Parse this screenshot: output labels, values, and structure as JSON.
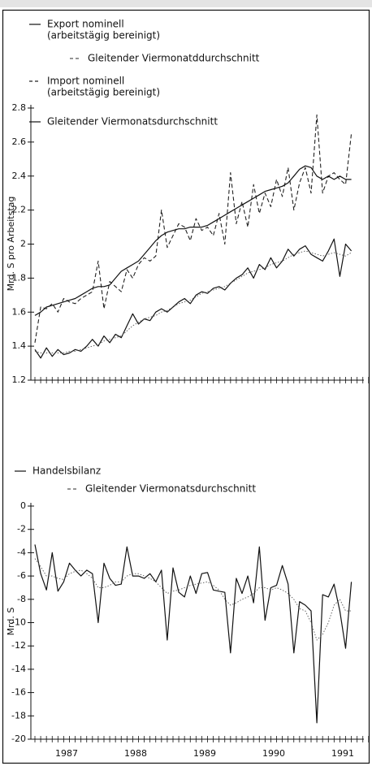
{
  "chart_data": [
    {
      "type": "line",
      "y_label": "Mrd. S pro Arbeitstag",
      "ylim": [
        1.2,
        2.8
      ],
      "yticks": [
        1.2,
        1.4,
        1.6,
        1.8,
        2,
        2.2,
        2.4,
        2.6,
        2.8
      ],
      "series": [
        {
          "name": "Export nominell",
          "note": "(arbeitstägig bereinigt)",
          "color": "#111111",
          "style": "solid",
          "values": [
            1.38,
            1.33,
            1.39,
            1.34,
            1.38,
            1.35,
            1.36,
            1.38,
            1.37,
            1.4,
            1.44,
            1.4,
            1.46,
            1.42,
            1.47,
            1.45,
            1.52,
            1.59,
            1.53,
            1.56,
            1.55,
            1.6,
            1.62,
            1.6,
            1.63,
            1.66,
            1.68,
            1.65,
            1.7,
            1.72,
            1.71,
            1.74,
            1.75,
            1.73,
            1.77,
            1.8,
            1.82,
            1.86,
            1.8,
            1.88,
            1.85,
            1.92,
            1.86,
            1.9,
            1.97,
            1.93,
            1.97,
            1.99,
            1.94,
            1.92,
            1.9,
            1.96,
            2.03,
            1.81,
            2.0,
            1.96
          ]
        },
        {
          "name": "Gleitender Viermonatddurchschnitt",
          "color": "#555555",
          "style": "dotted",
          "values": [
            1.37,
            1.36,
            1.36,
            1.36,
            1.36,
            1.36,
            1.37,
            1.37,
            1.38,
            1.39,
            1.4,
            1.41,
            1.43,
            1.44,
            1.45,
            1.46,
            1.49,
            1.52,
            1.54,
            1.56,
            1.57,
            1.58,
            1.6,
            1.61,
            1.63,
            1.65,
            1.66,
            1.67,
            1.69,
            1.71,
            1.72,
            1.73,
            1.74,
            1.75,
            1.77,
            1.79,
            1.81,
            1.83,
            1.84,
            1.85,
            1.86,
            1.88,
            1.89,
            1.9,
            1.92,
            1.94,
            1.95,
            1.96,
            1.95,
            1.94,
            1.93,
            1.94,
            1.95,
            1.94,
            1.93,
            1.95
          ]
        },
        {
          "name": "Import nominell",
          "note": "(arbeitstägig bereinigt)",
          "color": "#222222",
          "style": "dashed",
          "values": [
            1.42,
            1.63,
            1.62,
            1.65,
            1.6,
            1.68,
            1.66,
            1.65,
            1.68,
            1.7,
            1.72,
            1.9,
            1.62,
            1.78,
            1.75,
            1.72,
            1.85,
            1.8,
            1.88,
            1.92,
            1.9,
            1.93,
            2.2,
            1.98,
            2.05,
            2.12,
            2.1,
            2.02,
            2.15,
            2.08,
            2.1,
            2.05,
            2.18,
            2.0,
            2.42,
            2.12,
            2.25,
            2.1,
            2.35,
            2.18,
            2.3,
            2.22,
            2.38,
            2.28,
            2.45,
            2.2,
            2.36,
            2.45,
            2.3,
            2.76,
            2.3,
            2.4,
            2.42,
            2.38,
            2.35,
            2.65
          ]
        },
        {
          "name": "Gleitender Viermonatsdurchschnitt",
          "color": "#111111",
          "style": "solid",
          "values": [
            1.58,
            1.6,
            1.63,
            1.64,
            1.65,
            1.66,
            1.67,
            1.68,
            1.7,
            1.72,
            1.74,
            1.75,
            1.75,
            1.76,
            1.8,
            1.84,
            1.86,
            1.88,
            1.9,
            1.94,
            1.98,
            2.02,
            2.05,
            2.07,
            2.08,
            2.09,
            2.09,
            2.1,
            2.1,
            2.1,
            2.11,
            2.13,
            2.15,
            2.17,
            2.19,
            2.21,
            2.23,
            2.25,
            2.27,
            2.29,
            2.31,
            2.32,
            2.33,
            2.34,
            2.36,
            2.4,
            2.44,
            2.46,
            2.45,
            2.4,
            2.38,
            2.4,
            2.38,
            2.4,
            2.38,
            2.38
          ]
        }
      ]
    },
    {
      "type": "line",
      "y_label": "Mrd. S",
      "ylim": [
        -20,
        0
      ],
      "yticks": [
        0,
        -2,
        -4,
        -6,
        -8,
        -10,
        -12,
        -14,
        -16,
        -18,
        -20
      ],
      "year_labels": [
        "1987",
        "1988",
        "1989",
        "1990",
        "1991"
      ],
      "series": [
        {
          "name": "Handelsbilanz",
          "color": "#111111",
          "style": "solid",
          "values": [
            -3.3,
            -5.8,
            -7.2,
            -4.0,
            -7.3,
            -6.5,
            -4.9,
            -5.5,
            -6.0,
            -5.5,
            -5.8,
            -10.0,
            -4.9,
            -6.2,
            -6.8,
            -6.7,
            -3.5,
            -6.0,
            -6.0,
            -6.2,
            -5.8,
            -6.5,
            -5.5,
            -11.5,
            -5.3,
            -7.4,
            -7.8,
            -6.0,
            -7.5,
            -5.8,
            -5.7,
            -7.2,
            -7.3,
            -7.4,
            -12.6,
            -6.2,
            -7.5,
            -6.0,
            -8.3,
            -3.5,
            -9.8,
            -7.0,
            -6.8,
            -5.1,
            -6.7,
            -12.6,
            -8.2,
            -8.5,
            -9.0,
            -18.6,
            -7.6,
            -7.8,
            -6.7,
            -9.0,
            -12.2,
            -6.5
          ]
        },
        {
          "name": "Gleitender Viermonatsdurchschnitt",
          "color": "#555555",
          "style": "dotted",
          "values": [
            -4.5,
            -5.2,
            -6.0,
            -6.0,
            -6.2,
            -6.3,
            -5.8,
            -5.6,
            -5.5,
            -5.8,
            -6.2,
            -7.0,
            -7.0,
            -6.8,
            -6.5,
            -6.5,
            -6.0,
            -5.8,
            -5.8,
            -6.0,
            -6.2,
            -6.5,
            -7.0,
            -7.5,
            -7.3,
            -7.2,
            -7.0,
            -6.8,
            -6.7,
            -6.6,
            -6.5,
            -6.8,
            -7.2,
            -8.0,
            -8.5,
            -8.3,
            -8.0,
            -7.8,
            -7.5,
            -7.0,
            -7.0,
            -7.2,
            -7.0,
            -7.2,
            -7.5,
            -8.0,
            -8.8,
            -9.0,
            -10.0,
            -11.5,
            -11.0,
            -10.0,
            -8.5,
            -8.0,
            -9.0,
            -9.0
          ]
        }
      ]
    }
  ]
}
